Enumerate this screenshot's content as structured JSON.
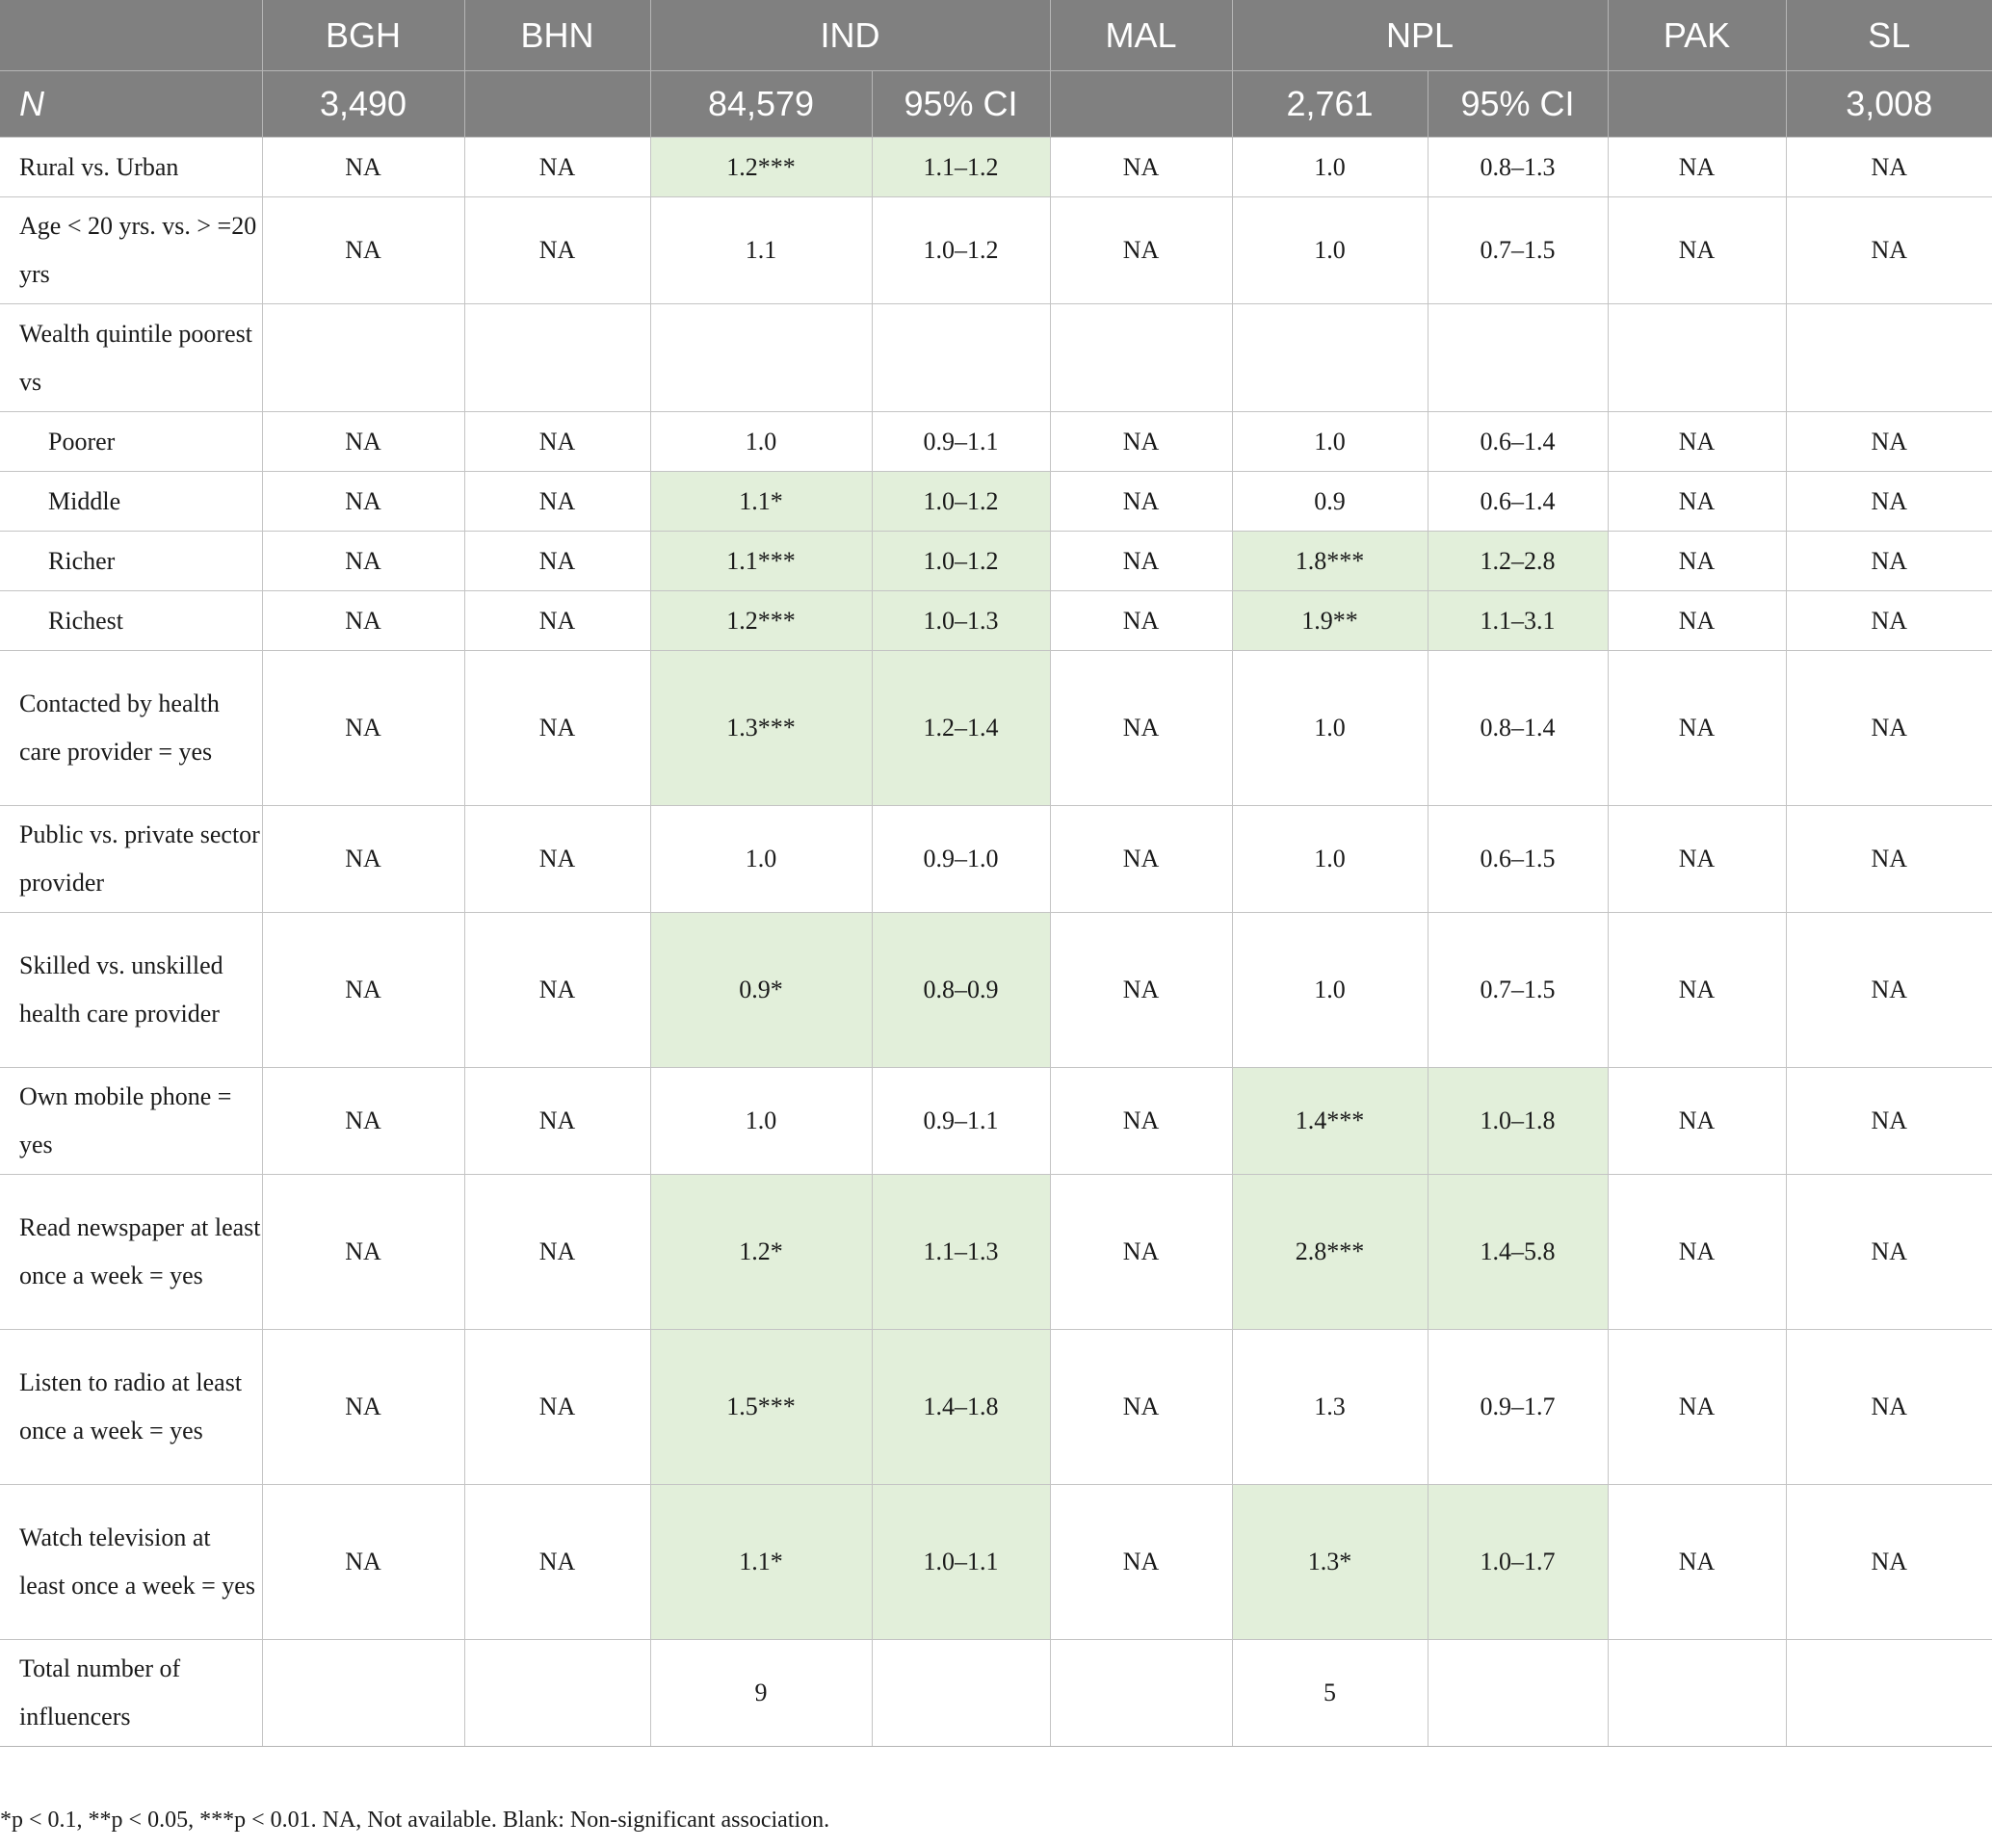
{
  "header": {
    "row1": [
      "",
      "BGH",
      "BHN",
      "IND",
      "MAL",
      "NPL",
      "PAK",
      "SL"
    ],
    "row2": [
      "N",
      "3,490",
      "",
      "84,579",
      "95% CI",
      "",
      "2,761",
      "95% CI",
      "",
      "3,008"
    ]
  },
  "rows": [
    {
      "label": "Rural vs. Urban",
      "cells": [
        "NA",
        "NA",
        "1.2***",
        "1.1–1.2",
        "NA",
        "1.0",
        "0.8–1.3",
        "NA",
        "NA"
      ]
    },
    {
      "label": "Age < 20 yrs. vs. > =20 yrs",
      "cells": [
        "NA",
        "NA",
        "1.1",
        "1.0–1.2",
        "NA",
        "1.0",
        "0.7–1.5",
        "NA",
        "NA"
      ]
    },
    {
      "label": "Wealth quintile poorest vs",
      "cells": [
        "",
        "",
        "",
        "",
        "",
        "",
        "",
        "",
        ""
      ]
    },
    {
      "label": "Poorer",
      "cells": [
        "NA",
        "NA",
        "1.0",
        "0.9–1.1",
        "NA",
        "1.0",
        "0.6–1.4",
        "NA",
        "NA"
      ]
    },
    {
      "label": "Middle",
      "cells": [
        "NA",
        "NA",
        "1.1*",
        "1.0–1.2",
        "NA",
        "0.9",
        "0.6–1.4",
        "NA",
        "NA"
      ]
    },
    {
      "label": "Richer",
      "cells": [
        "NA",
        "NA",
        "1.1***",
        "1.0–1.2",
        "NA",
        "1.8***",
        "1.2–2.8",
        "NA",
        "NA"
      ]
    },
    {
      "label": "Richest",
      "cells": [
        "NA",
        "NA",
        "1.2***",
        "1.0–1.3",
        "NA",
        "1.9**",
        "1.1–3.1",
        "NA",
        "NA"
      ]
    },
    {
      "label": "Contacted by health care provider = yes",
      "cells": [
        "NA",
        "NA",
        "1.3***",
        "1.2–1.4",
        "NA",
        "1.0",
        "0.8–1.4",
        "NA",
        "NA"
      ]
    },
    {
      "label": "Public vs. private sector provider",
      "cells": [
        "NA",
        "NA",
        "1.0",
        "0.9–1.0",
        "NA",
        "1.0",
        "0.6–1.5",
        "NA",
        "NA"
      ]
    },
    {
      "label": "Skilled vs. unskilled health care provider",
      "cells": [
        "NA",
        "NA",
        "0.9*",
        "0.8–0.9",
        "NA",
        "1.0",
        "0.7–1.5",
        "NA",
        "NA"
      ]
    },
    {
      "label": "Own mobile phone = yes",
      "cells": [
        "NA",
        "NA",
        "1.0",
        "0.9–1.1",
        "NA",
        "1.4***",
        "1.0–1.8",
        "NA",
        "NA"
      ]
    },
    {
      "label": "Read newspaper at least once a week = yes",
      "cells": [
        "NA",
        "NA",
        "1.2*",
        "1.1–1.3",
        "NA",
        "2.8***",
        "1.4–5.8",
        "NA",
        "NA"
      ]
    },
    {
      "label": "Listen to radio at least once a week = yes",
      "cells": [
        "NA",
        "NA",
        "1.5***",
        "1.4–1.8",
        "NA",
        "1.3",
        "0.9–1.7",
        "NA",
        "NA"
      ]
    },
    {
      "label": "Watch television at least once a week = yes",
      "cells": [
        "NA",
        "NA",
        "1.1*",
        "1.0–1.1",
        "NA",
        "1.3*",
        "1.0–1.7",
        "NA",
        "NA"
      ]
    },
    {
      "label": "Total number of influencers",
      "cells": [
        "",
        "",
        "9",
        "",
        "",
        "5",
        "",
        "",
        ""
      ]
    }
  ],
  "footnote": "*p < 0.1, **p < 0.05, ***p < 0.01. NA, Not available. Blank: Non-significant association.",
  "highlight_color": "#e2efda",
  "header_color": "#808080"
}
